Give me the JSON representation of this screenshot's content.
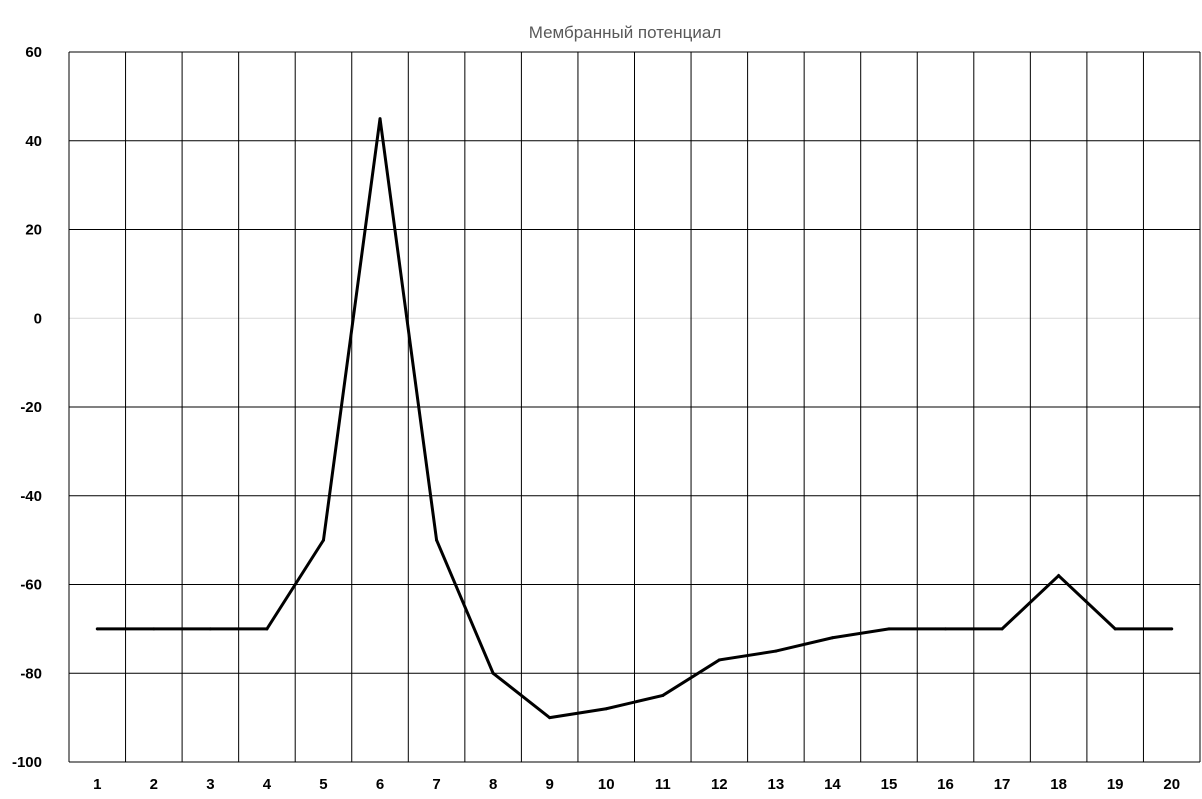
{
  "chart_data": {
    "type": "line",
    "title": "Мембранный потенциал",
    "xlabel": "",
    "ylabel": "",
    "categories": [
      "1",
      "2",
      "3",
      "4",
      "5",
      "6",
      "7",
      "8",
      "9",
      "10",
      "11",
      "12",
      "13",
      "14",
      "15",
      "16",
      "17",
      "18",
      "19",
      "20"
    ],
    "x": [
      1,
      2,
      3,
      4,
      5,
      6,
      7,
      8,
      9,
      10,
      11,
      12,
      13,
      14,
      15,
      16,
      17,
      18,
      19,
      20
    ],
    "series": [
      {
        "values": [
          -70,
          -70,
          -70,
          -70,
          -50,
          45,
          -50,
          -80,
          -90,
          -88,
          -85,
          -77,
          -75,
          -72,
          -70,
          -70,
          -70,
          -58,
          -70,
          -70
        ]
      }
    ],
    "ylim": [
      -100,
      60
    ],
    "yticks": [
      60,
      40,
      20,
      0,
      -20,
      -40,
      -60,
      -80,
      -100
    ],
    "ytick_labels": [
      "60",
      "40",
      "20",
      "0",
      "-20",
      "-40",
      "-60",
      "-80",
      "-100"
    ],
    "grid": true,
    "legend": "none",
    "colors": {
      "line": "#000000",
      "grid": "#000000",
      "zero_line": "#d9d9d9",
      "title": "#595959"
    }
  }
}
